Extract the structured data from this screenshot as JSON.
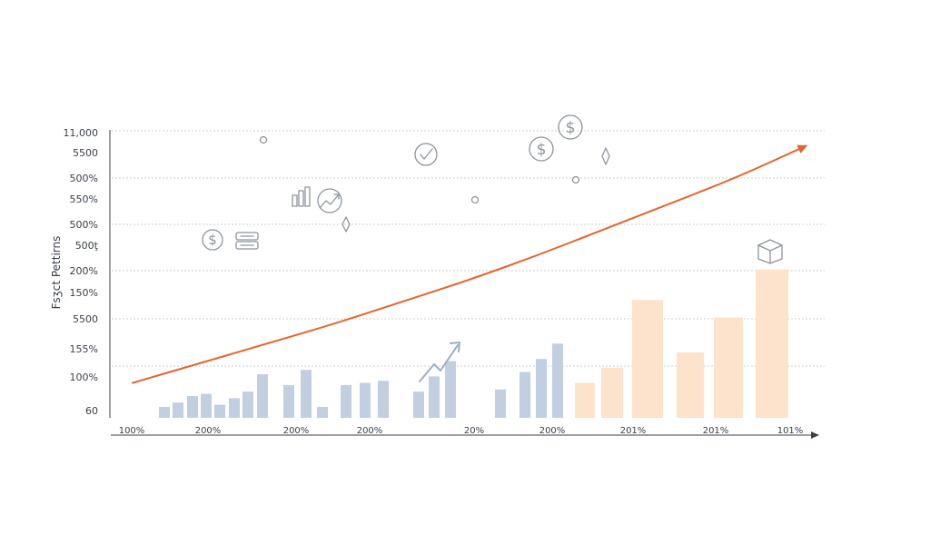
{
  "chart_data": {
    "type": "bar",
    "ylabel": "Fsʒct Pettirns",
    "y_tick_labels": [
      "11,000",
      "5500",
      "500%",
      "550%",
      "500%",
      "500ţ",
      "200%",
      "150%",
      "5500",
      "155%",
      "100%",
      "60"
    ],
    "x_tick_labels": [
      "100%",
      "200%",
      "200%",
      "200%",
      "20%",
      "200%",
      "201%",
      "201%",
      "101%"
    ],
    "grid": true,
    "colors": {
      "line": "#e4652b",
      "bar_blue": "#c2cfe0",
      "bar_orange": "#fde3cb",
      "axis": "#3a3f48",
      "grid": "#c9ccd2",
      "icon": "#8e949e",
      "trend_arrow": "#9aaec6"
    },
    "trend_line": {
      "x": [
        0,
        1,
        2,
        3,
        4,
        5,
        6,
        7,
        8,
        9,
        10
      ],
      "y": [
        8,
        12.5,
        17,
        21.5,
        26.5,
        31.5,
        37,
        43,
        49,
        55,
        62
      ]
    },
    "series": [
      {
        "color": "blue",
        "values": [
          2.5,
          3.5,
          5,
          5.5,
          3,
          4.5,
          6,
          10,
          7.5,
          11,
          2.5,
          7.5,
          8,
          8.5,
          6,
          9.5,
          13,
          6.5,
          10.5,
          13.5,
          17
        ]
      },
      {
        "color": "orange",
        "values": [
          8,
          11.5,
          27,
          15,
          23,
          34
        ]
      }
    ],
    "ylim": [
      0,
      66
    ]
  },
  "icons": [
    "dollar-icon",
    "coin-stack-icon",
    "bar-chart-icon",
    "rising-chart-icon",
    "checkmark-circle-icon",
    "dollar-icon",
    "dollar-icon",
    "diamond-icon",
    "box-icon",
    "trend-arrow-icon"
  ]
}
